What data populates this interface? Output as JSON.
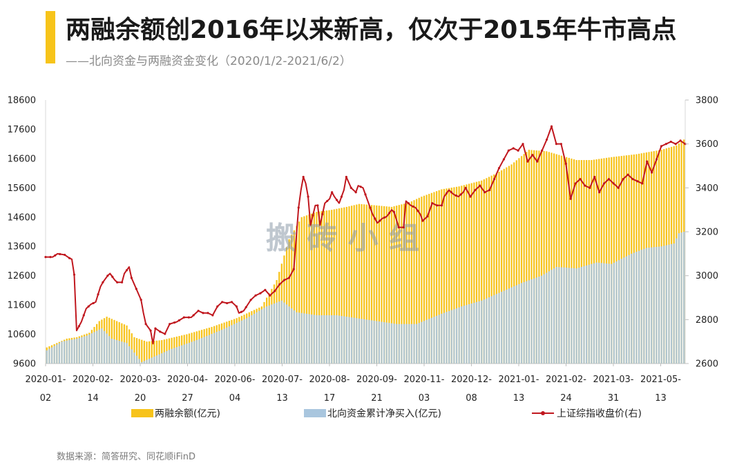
{
  "header": {
    "title": "两融余额创2016年以来新高，仅次于2015年牛市高点",
    "subtitle": "——北向资金与两融资金变化（2020/1/2-2021/6/2）"
  },
  "footer": {
    "source": "数据来源：简答研究、同花顺iFinD"
  },
  "watermark": "搬 砖 小 组",
  "colors": {
    "accent": "#f7c41a",
    "margin": "#f7c31a",
    "northbound": "#a9c6de",
    "index": "#c0171e"
  },
  "chart_data": {
    "type": "bar",
    "title": "两融余额创2016年以来新高，仅次于2015年牛市高点",
    "ylim_left": [
      9600,
      18600
    ],
    "ylim_right": [
      2600,
      3800
    ],
    "left_ticks": [
      "18600",
      "17600",
      "16600",
      "15600",
      "14600",
      "13600",
      "12600",
      "11600",
      "10600",
      "9600"
    ],
    "right_ticks": [
      "3800",
      "3600",
      "3400",
      "3200",
      "3000",
      "2800",
      "2600"
    ],
    "x_tick_labels": [
      {
        "top": "2020-01-",
        "bottom": "02"
      },
      {
        "top": "2020-02-",
        "bottom": "14"
      },
      {
        "top": "2020-03-",
        "bottom": "20"
      },
      {
        "top": "2020-04-",
        "bottom": "27"
      },
      {
        "top": "2020-06-",
        "bottom": "04"
      },
      {
        "top": "2020-07-",
        "bottom": "13"
      },
      {
        "top": "2020-08-",
        "bottom": "17"
      },
      {
        "top": "2020-09-",
        "bottom": "21"
      },
      {
        "top": "2020-11-",
        "bottom": "03"
      },
      {
        "top": "2020-12-",
        "bottom": "08"
      },
      {
        "top": "2021-01-",
        "bottom": "13"
      },
      {
        "top": "2021-02-",
        "bottom": "24"
      },
      {
        "top": "2021-03-",
        "bottom": "31"
      },
      {
        "top": "2021-05-",
        "bottom": "13"
      }
    ],
    "legend": [
      "两融余额(亿元)",
      "北向资金累计净买入(亿元)",
      "上证综指收盘价(右)"
    ],
    "series": [
      {
        "name": "两融余额(亿元)",
        "axis": "left",
        "style": "bar",
        "anchors": [
          [
            0,
            10150
          ],
          [
            8,
            10450
          ],
          [
            12,
            10500
          ],
          [
            17,
            10650
          ],
          [
            21,
            11050
          ],
          [
            24,
            11200
          ],
          [
            28,
            11050
          ],
          [
            32,
            10900
          ],
          [
            35,
            10500
          ],
          [
            40,
            10350
          ],
          [
            46,
            10400
          ],
          [
            56,
            10600
          ],
          [
            66,
            10850
          ],
          [
            76,
            11150
          ],
          [
            86,
            11550
          ],
          [
            92,
            12450
          ],
          [
            97,
            13850
          ],
          [
            102,
            14600
          ],
          [
            108,
            14780
          ],
          [
            114,
            14850
          ],
          [
            120,
            14950
          ],
          [
            125,
            15050
          ],
          [
            132,
            15000
          ],
          [
            138,
            14950
          ],
          [
            145,
            15100
          ],
          [
            150,
            15300
          ],
          [
            158,
            15550
          ],
          [
            165,
            15650
          ],
          [
            174,
            15850
          ],
          [
            180,
            16100
          ],
          [
            186,
            16400
          ],
          [
            193,
            16900
          ],
          [
            200,
            16850
          ],
          [
            206,
            16700
          ],
          [
            212,
            16550
          ],
          [
            218,
            16550
          ],
          [
            226,
            16650
          ],
          [
            236,
            16750
          ],
          [
            246,
            16900
          ],
          [
            252,
            17050
          ],
          [
            255,
            17250
          ]
        ]
      },
      {
        "name": "北向资金累计净买入(亿元)",
        "axis": "left",
        "style": "bar",
        "anchors": [
          [
            0,
            10050
          ],
          [
            6,
            10350
          ],
          [
            12,
            10450
          ],
          [
            16,
            10550
          ],
          [
            22,
            10800
          ],
          [
            26,
            10450
          ],
          [
            32,
            10300
          ],
          [
            38,
            9650
          ],
          [
            42,
            9800
          ],
          [
            50,
            10100
          ],
          [
            60,
            10400
          ],
          [
            70,
            10750
          ],
          [
            80,
            11150
          ],
          [
            88,
            11550
          ],
          [
            94,
            11750
          ],
          [
            100,
            11350
          ],
          [
            108,
            11250
          ],
          [
            116,
            11250
          ],
          [
            124,
            11150
          ],
          [
            132,
            11050
          ],
          [
            140,
            10950
          ],
          [
            148,
            10950
          ],
          [
            158,
            11300
          ],
          [
            166,
            11550
          ],
          [
            174,
            11750
          ],
          [
            182,
            12050
          ],
          [
            190,
            12350
          ],
          [
            198,
            12600
          ],
          [
            204,
            12900
          ],
          [
            212,
            12850
          ],
          [
            220,
            13050
          ],
          [
            226,
            13000
          ],
          [
            234,
            13350
          ],
          [
            240,
            13550
          ],
          [
            246,
            13600
          ],
          [
            251,
            13700
          ],
          [
            253,
            14050
          ],
          [
            255,
            14100
          ]
        ]
      },
      {
        "name": "上证综指收盘价(右)",
        "axis": "right",
        "style": "line",
        "anchors": [
          [
            0,
            3085
          ],
          [
            3,
            3085
          ],
          [
            5,
            3100
          ],
          [
            8,
            3095
          ],
          [
            10,
            3080
          ],
          [
            11,
            3075
          ],
          [
            12,
            3005
          ],
          [
            13,
            2750
          ],
          [
            15,
            2790
          ],
          [
            17,
            2850
          ],
          [
            19,
            2870
          ],
          [
            21,
            2880
          ],
          [
            23,
            2950
          ],
          [
            24,
            2970
          ],
          [
            26,
            3000
          ],
          [
            27,
            3010
          ],
          [
            29,
            2980
          ],
          [
            30,
            2970
          ],
          [
            32,
            2970
          ],
          [
            33,
            3010
          ],
          [
            35,
            3040
          ],
          [
            36,
            2990
          ],
          [
            38,
            2940
          ],
          [
            40,
            2890
          ],
          [
            41,
            2830
          ],
          [
            42,
            2780
          ],
          [
            44,
            2750
          ],
          [
            45,
            2690
          ],
          [
            46,
            2760
          ],
          [
            48,
            2745
          ],
          [
            50,
            2735
          ],
          [
            52,
            2780
          ],
          [
            55,
            2790
          ],
          [
            58,
            2810
          ],
          [
            61,
            2810
          ],
          [
            64,
            2840
          ],
          [
            66,
            2830
          ],
          [
            68,
            2830
          ],
          [
            70,
            2820
          ],
          [
            72,
            2860
          ],
          [
            74,
            2880
          ],
          [
            76,
            2875
          ],
          [
            78,
            2880
          ],
          [
            80,
            2860
          ],
          [
            81,
            2830
          ],
          [
            83,
            2840
          ],
          [
            86,
            2890
          ],
          [
            88,
            2910
          ],
          [
            90,
            2920
          ],
          [
            92,
            2935
          ],
          [
            94,
            2910
          ],
          [
            96,
            2930
          ],
          [
            98,
            2960
          ],
          [
            100,
            2980
          ],
          [
            102,
            2990
          ],
          [
            104,
            3030
          ],
          [
            106,
            3310
          ],
          [
            107,
            3390
          ],
          [
            108,
            3450
          ],
          [
            109,
            3420
          ],
          [
            110,
            3360
          ],
          [
            111,
            3230
          ],
          [
            113,
            3320
          ],
          [
            114,
            3320
          ],
          [
            115,
            3230
          ],
          [
            117,
            3330
          ],
          [
            119,
            3350
          ],
          [
            120,
            3380
          ],
          [
            121,
            3360
          ],
          [
            123,
            3330
          ],
          [
            125,
            3390
          ],
          [
            126,
            3450
          ],
          [
            128,
            3400
          ],
          [
            130,
            3380
          ],
          [
            131,
            3410
          ],
          [
            133,
            3400
          ],
          [
            135,
            3340
          ],
          [
            137,
            3280
          ],
          [
            139,
            3240
          ],
          [
            141,
            3260
          ],
          [
            143,
            3270
          ],
          [
            145,
            3300
          ],
          [
            146,
            3290
          ],
          [
            148,
            3220
          ],
          [
            150,
            3220
          ],
          [
            151,
            3340
          ],
          [
            153,
            3320
          ],
          [
            155,
            3310
          ],
          [
            157,
            3280
          ],
          [
            158,
            3250
          ],
          [
            160,
            3270
          ],
          [
            162,
            3330
          ],
          [
            164,
            3320
          ],
          [
            166,
            3320
          ],
          [
            167,
            3360
          ],
          [
            169,
            3390
          ],
          [
            171,
            3370
          ],
          [
            173,
            3360
          ],
          [
            175,
            3380
          ],
          [
            176,
            3400
          ],
          [
            178,
            3360
          ],
          [
            180,
            3390
          ],
          [
            182,
            3410
          ],
          [
            184,
            3380
          ],
          [
            186,
            3390
          ],
          [
            188,
            3440
          ],
          [
            190,
            3490
          ],
          [
            192,
            3530
          ],
          [
            194,
            3570
          ],
          [
            196,
            3580
          ],
          [
            198,
            3570
          ],
          [
            200,
            3600
          ],
          [
            202,
            3520
          ],
          [
            204,
            3550
          ],
          [
            206,
            3520
          ],
          [
            208,
            3570
          ],
          [
            210,
            3620
          ],
          [
            212,
            3680
          ],
          [
            214,
            3600
          ],
          [
            216,
            3600
          ],
          [
            218,
            3510
          ],
          [
            220,
            3350
          ],
          [
            222,
            3420
          ],
          [
            224,
            3440
          ],
          [
            226,
            3410
          ],
          [
            228,
            3400
          ],
          [
            230,
            3450
          ],
          [
            232,
            3380
          ],
          [
            234,
            3420
          ],
          [
            236,
            3440
          ],
          [
            238,
            3420
          ],
          [
            240,
            3400
          ],
          [
            242,
            3440
          ],
          [
            244,
            3460
          ],
          [
            246,
            3440
          ],
          [
            248,
            3430
          ],
          [
            250,
            3420
          ],
          [
            252,
            3520
          ],
          [
            254,
            3470
          ],
          [
            256,
            3530
          ],
          [
            258,
            3590
          ],
          [
            260,
            3600
          ],
          [
            262,
            3610
          ],
          [
            264,
            3600
          ],
          [
            266,
            3615
          ],
          [
            268,
            3600
          ]
        ]
      }
    ]
  }
}
